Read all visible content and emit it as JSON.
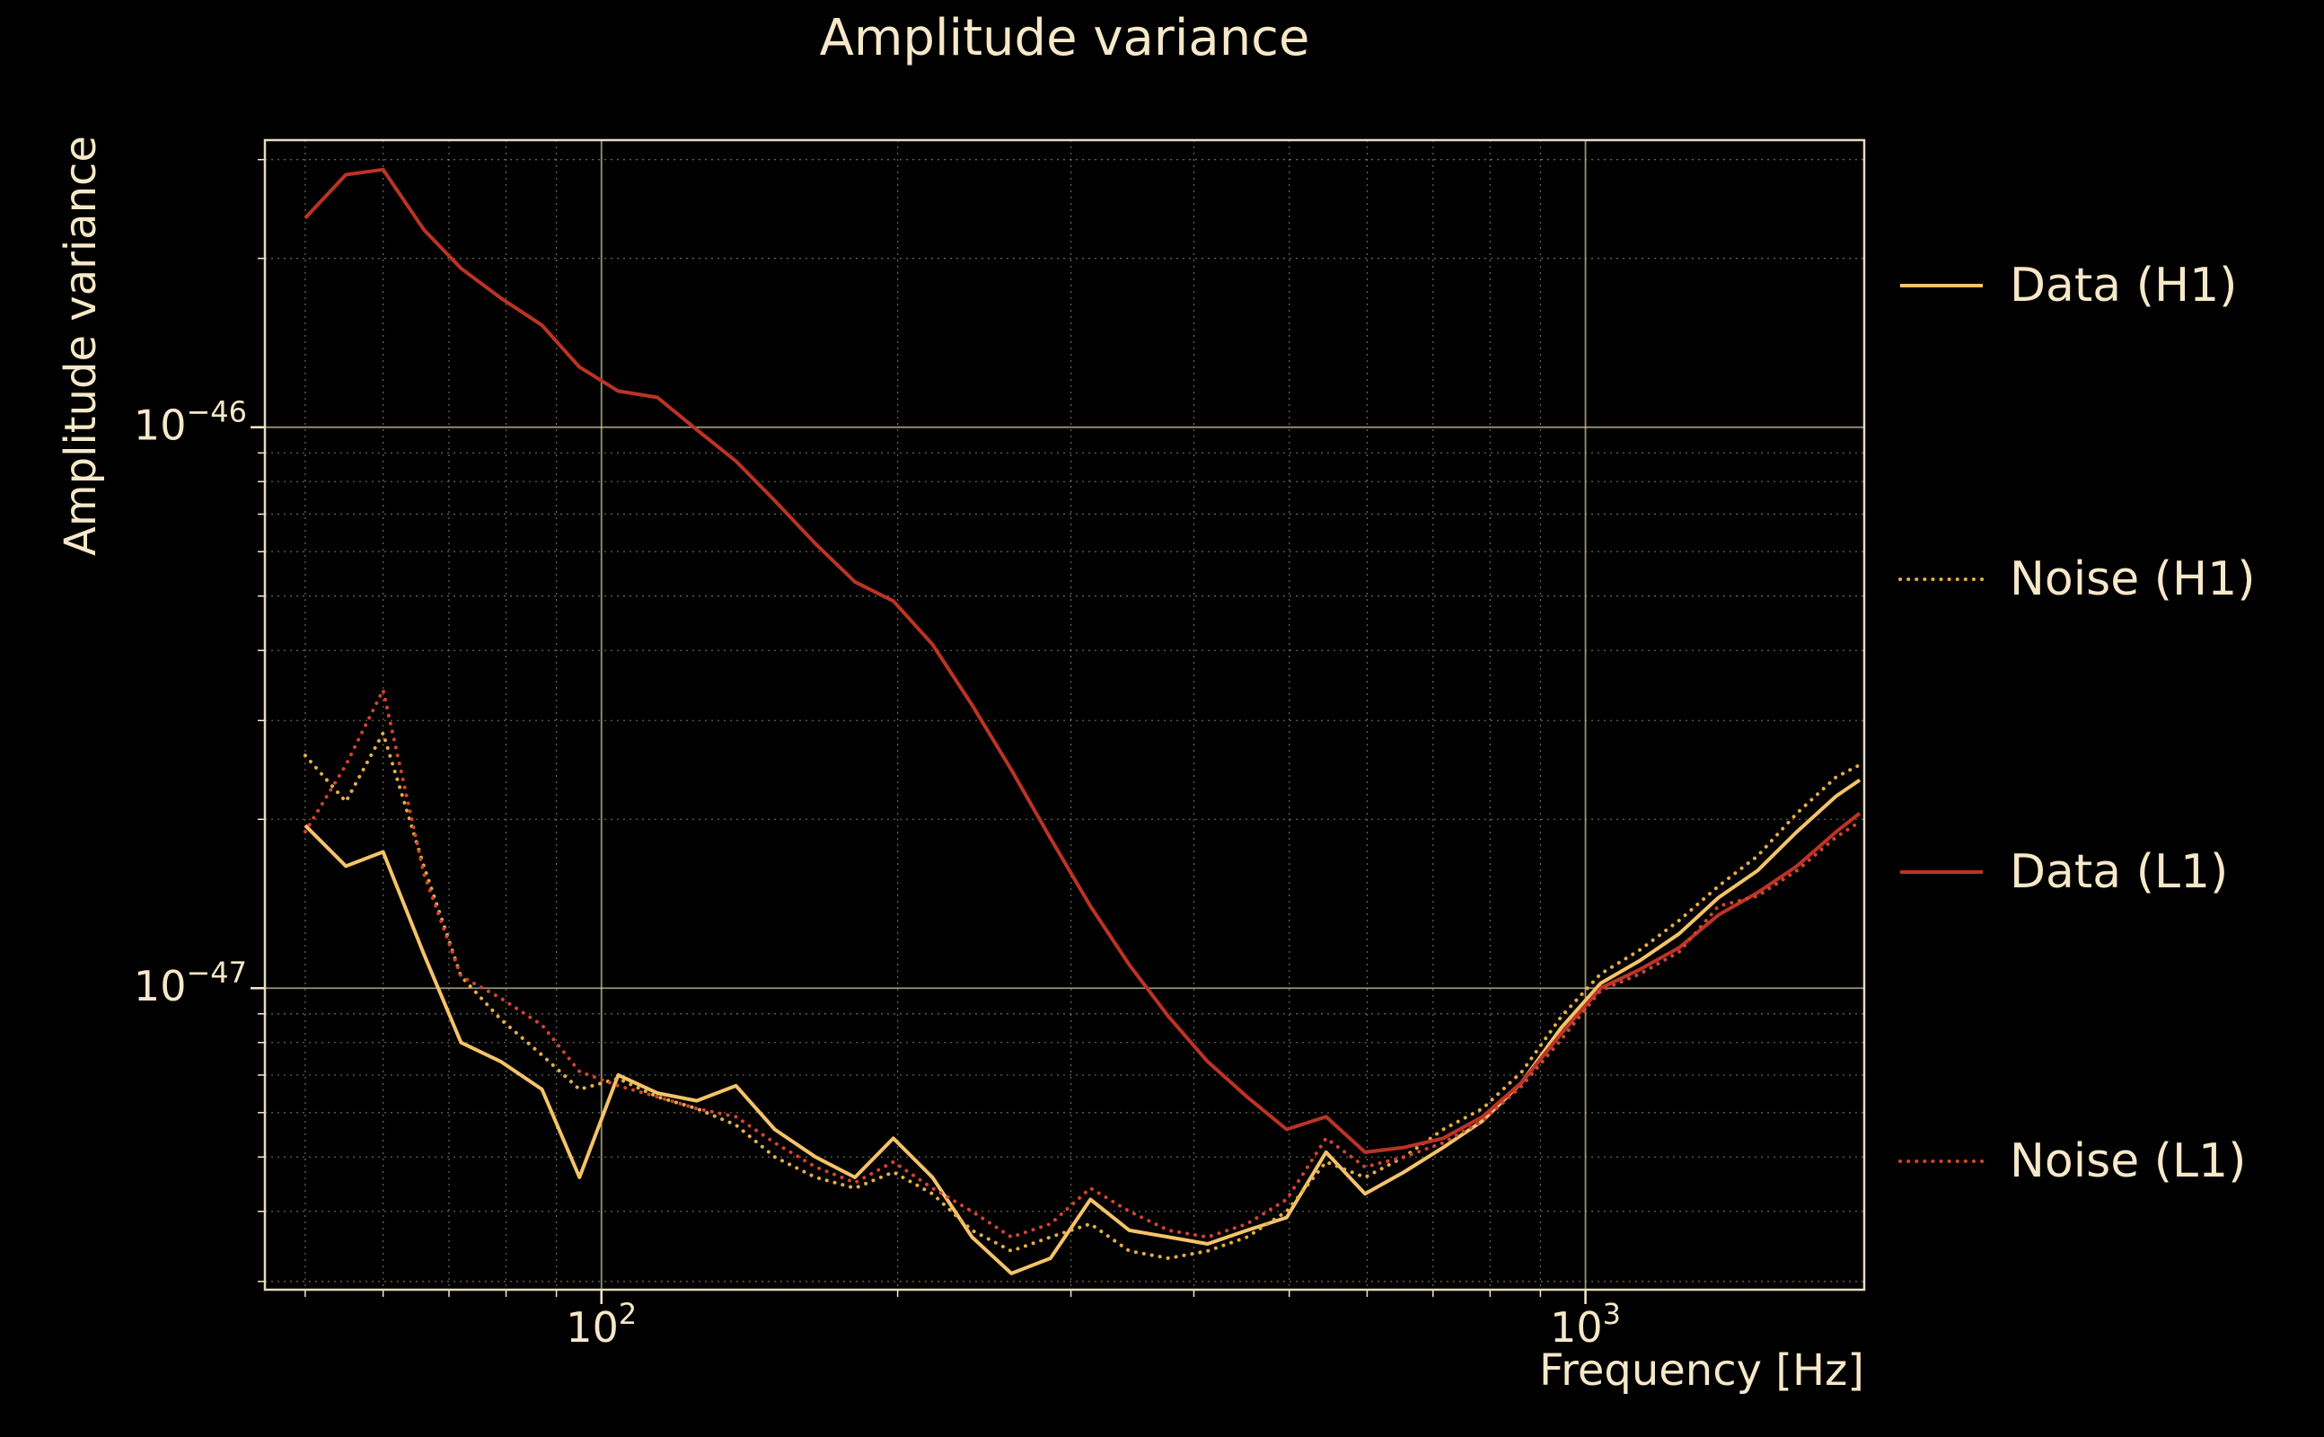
{
  "colors": {
    "background": "#000000",
    "text": "#f6e8c8",
    "grid": "#cfc49e",
    "spine": "#e8dcc0"
  },
  "chart_data": {
    "type": "line",
    "title": "Amplitude variance",
    "xlabel": "Frequency [Hz]",
    "ylabel": "Amplitude variance",
    "xscale": "log",
    "yscale": "log",
    "xlim": [
      45.5,
      1920
    ],
    "ylim": [
      2.9e-48,
      3.25e-46
    ],
    "grid": true,
    "legend_position": "right-outside",
    "xticks": [
      {
        "at": 100,
        "base": "10",
        "exp": "2"
      },
      {
        "at": 1000,
        "base": "10",
        "exp": "3"
      }
    ],
    "yticks": [
      {
        "at": 1e-46,
        "base": "10",
        "exp": "−46"
      },
      {
        "at": 1e-47,
        "base": "10",
        "exp": "−47"
      }
    ],
    "frequencies_hz": [
      50,
      55,
      60,
      66,
      72,
      79,
      87,
      95,
      104,
      114,
      125,
      137,
      150,
      165,
      181,
      198,
      217,
      238,
      261,
      286,
      314,
      344,
      377,
      413,
      453,
      497,
      545,
      597,
      654,
      717,
      786,
      862,
      945,
      1036,
      1136,
      1245,
      1365,
      1496,
      1640,
      1798,
      1900
    ],
    "values_scale": 1e-48,
    "series": [
      {
        "name": "Data (H1)",
        "color": "#f4c36a",
        "style": "solid",
        "values": [
          19.5,
          16.5,
          17.5,
          11.5,
          8.0,
          7.4,
          6.6,
          4.6,
          7.0,
          6.5,
          6.3,
          6.7,
          5.6,
          5.0,
          4.6,
          5.4,
          4.6,
          3.6,
          3.1,
          3.3,
          4.2,
          3.7,
          3.6,
          3.5,
          3.7,
          3.9,
          5.1,
          4.3,
          4.7,
          5.2,
          5.8,
          6.8,
          8.5,
          10.2,
          11.2,
          12.5,
          14.5,
          16.2,
          19.0,
          22.0,
          23.5
        ]
      },
      {
        "name": "Noise (H1)",
        "color": "#e2af47",
        "style": "dotted",
        "values": [
          26.0,
          21.5,
          28.5,
          16.5,
          10.5,
          8.8,
          7.6,
          6.6,
          6.9,
          6.4,
          6.1,
          5.7,
          5.0,
          4.6,
          4.4,
          4.7,
          4.3,
          3.7,
          3.4,
          3.6,
          3.8,
          3.4,
          3.3,
          3.4,
          3.6,
          4.0,
          4.9,
          4.6,
          5.0,
          5.6,
          6.1,
          7.1,
          8.9,
          10.6,
          11.7,
          13.2,
          15.2,
          17.2,
          20.5,
          23.8,
          25.0
        ]
      },
      {
        "name": "Data (L1)",
        "color": "#bc3325",
        "style": "solid",
        "values": [
          236,
          282,
          288,
          225,
          192,
          170,
          152,
          128,
          116,
          113,
          99,
          87,
          74,
          62,
          53,
          49,
          41,
          32,
          24.5,
          18.5,
          14.0,
          11.0,
          8.9,
          7.4,
          6.4,
          5.6,
          5.9,
          5.1,
          5.2,
          5.4,
          5.9,
          6.8,
          8.3,
          10.0,
          10.8,
          11.8,
          13.5,
          14.8,
          16.5,
          19.0,
          20.5
        ]
      },
      {
        "name": "Noise (L1)",
        "color": "#cf4433",
        "style": "dotted",
        "values": [
          19.0,
          25.0,
          34.0,
          16.0,
          10.5,
          9.6,
          8.6,
          7.1,
          6.7,
          6.4,
          6.1,
          5.9,
          5.3,
          4.8,
          4.5,
          4.9,
          4.4,
          4.0,
          3.6,
          3.8,
          4.4,
          4.0,
          3.7,
          3.6,
          3.8,
          4.2,
          5.4,
          4.8,
          5.0,
          5.3,
          5.8,
          6.7,
          8.1,
          9.9,
          10.6,
          11.6,
          14.0,
          14.6,
          16.2,
          18.6,
          19.8
        ]
      }
    ]
  }
}
